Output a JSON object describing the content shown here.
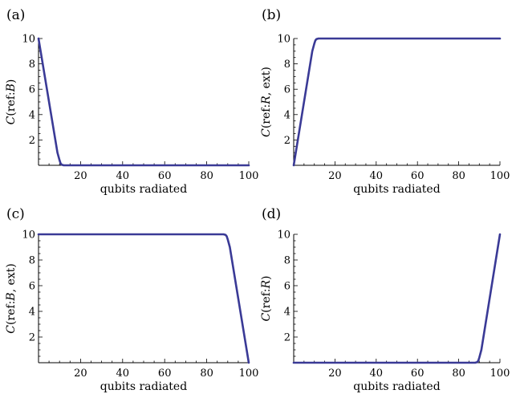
{
  "figure": {
    "line_color": "#3a3a96"
  },
  "chart_data": [
    {
      "type": "line",
      "panel_label": "(a)",
      "xlabel": "qubits radiated",
      "ylabel": "C(ref:B)",
      "ylabel_parts": {
        "c": "C",
        "open": "(ref:",
        "italic": "B",
        "close": ")"
      },
      "xlim": [
        0,
        100
      ],
      "ylim": [
        0,
        10
      ],
      "xticks": [
        20,
        40,
        60,
        80,
        100
      ],
      "yticks": [
        2,
        4,
        6,
        8,
        10
      ],
      "series": [
        {
          "x": [
            0,
            2,
            4,
            6,
            8,
            9,
            10,
            10.5,
            11,
            12,
            100
          ],
          "y": [
            10,
            8,
            6,
            4,
            2,
            1,
            0.4,
            0.15,
            0.05,
            0,
            0
          ]
        }
      ]
    },
    {
      "type": "line",
      "panel_label": "(b)",
      "xlabel": "qubits radiated",
      "ylabel": "C(ref:R, ext)",
      "ylabel_parts": {
        "c": "C",
        "open": "(ref:",
        "italic": "R",
        "close": ", ext)"
      },
      "xlim": [
        0,
        100
      ],
      "ylim": [
        0,
        10
      ],
      "xticks": [
        20,
        40,
        60,
        80,
        100
      ],
      "yticks": [
        2,
        4,
        6,
        8,
        10
      ],
      "series": [
        {
          "x": [
            0,
            2,
            4,
            6,
            8,
            9,
            10,
            10.5,
            11,
            12,
            100
          ],
          "y": [
            0,
            2,
            4,
            6,
            8,
            9,
            9.6,
            9.85,
            9.95,
            10,
            10
          ]
        }
      ]
    },
    {
      "type": "line",
      "panel_label": "(c)",
      "xlabel": "qubits radiated",
      "ylabel": "C(ref:B, ext)",
      "ylabel_parts": {
        "c": "C",
        "open": "(ref:",
        "italic": "B",
        "close": ", ext)"
      },
      "xlim": [
        0,
        100
      ],
      "ylim": [
        0,
        10
      ],
      "xticks": [
        20,
        40,
        60,
        80,
        100
      ],
      "yticks": [
        2,
        4,
        6,
        8,
        10
      ],
      "series": [
        {
          "x": [
            0,
            88,
            89,
            89.5,
            90,
            91,
            92,
            94,
            96,
            98,
            100
          ],
          "y": [
            10,
            10,
            9.95,
            9.85,
            9.6,
            9,
            8,
            6,
            4,
            2,
            0
          ]
        }
      ]
    },
    {
      "type": "line",
      "panel_label": "(d)",
      "xlabel": "qubits radiated",
      "ylabel": "C(ref:R)",
      "ylabel_parts": {
        "c": "C",
        "open": "(ref:",
        "italic": "R",
        "close": ")"
      },
      "xlim": [
        0,
        100
      ],
      "ylim": [
        0,
        10
      ],
      "xticks": [
        20,
        40,
        60,
        80,
        100
      ],
      "yticks": [
        2,
        4,
        6,
        8,
        10
      ],
      "series": [
        {
          "x": [
            0,
            88,
            89,
            89.5,
            90,
            91,
            92,
            94,
            96,
            98,
            100
          ],
          "y": [
            0,
            0,
            0.05,
            0.15,
            0.4,
            1,
            2,
            4,
            6,
            8,
            10
          ]
        }
      ]
    }
  ]
}
